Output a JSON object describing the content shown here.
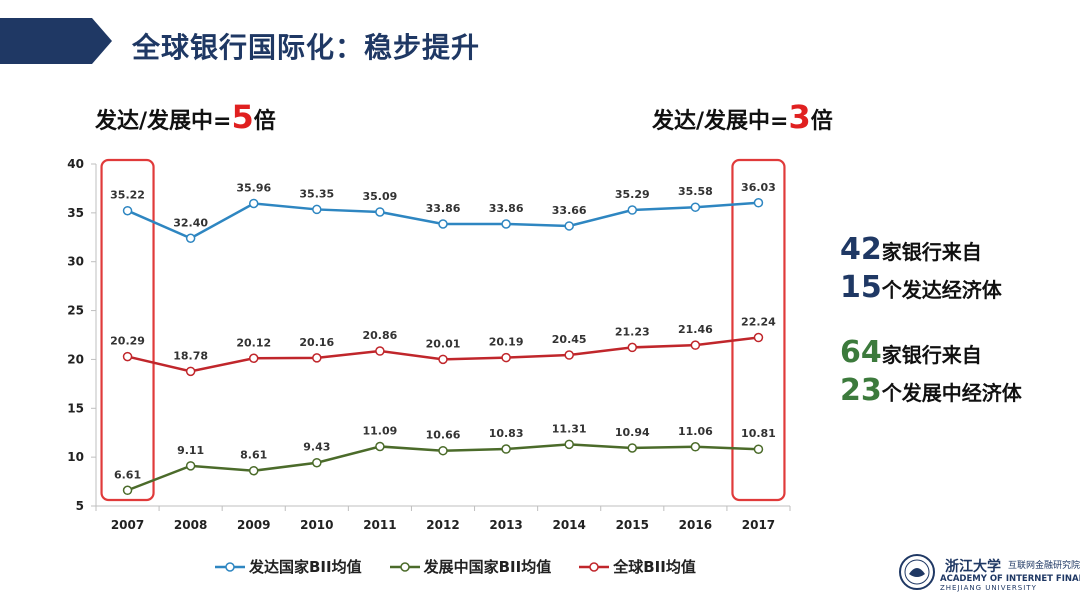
{
  "header": {
    "title": "全球银行国际化：稳步提升"
  },
  "ratios": {
    "left_prefix": "发达/发展中=",
    "left_value": "5",
    "left_suffix": "倍",
    "right_prefix": "发达/发展中=",
    "right_value": "3",
    "right_suffix": "倍"
  },
  "stats": {
    "line1_num": "42",
    "line1_text": "家银行来自",
    "line2_num": "15",
    "line2_text": "个发达经济体",
    "line3_num": "64",
    "line3_text": "家银行来自",
    "line4_num": "23",
    "line4_text": "个发展中经济体"
  },
  "logo": {
    "cn": "浙江大学",
    "sub_cn": "互联网金融研究院",
    "en1": "ACADEMY OF INTERNET FINANCE",
    "en2": "ZHEJIANG UNIVERSITY"
  },
  "colors": {
    "developed": "#2e86c1",
    "developing": "#4b6b2a",
    "global": "#c0262b",
    "highlight_box": "#e03a3a",
    "banner": "#1f3864"
  },
  "chart_data": {
    "type": "line",
    "categories": [
      "2007",
      "2008",
      "2009",
      "2010",
      "2011",
      "2012",
      "2013",
      "2014",
      "2015",
      "2016",
      "2017"
    ],
    "series": [
      {
        "name": "发达国家BII均值",
        "values": [
          35.22,
          32.4,
          35.96,
          35.35,
          35.09,
          33.86,
          33.86,
          33.66,
          35.29,
          35.58,
          36.03
        ]
      },
      {
        "name": "发展中国家BII均值",
        "values": [
          6.61,
          9.11,
          8.61,
          9.43,
          11.09,
          10.66,
          10.83,
          11.31,
          10.94,
          11.06,
          10.81
        ]
      },
      {
        "name": "全球BII均值",
        "values": [
          20.29,
          18.78,
          20.12,
          20.16,
          20.86,
          20.01,
          20.19,
          20.45,
          21.23,
          21.46,
          22.24
        ]
      }
    ],
    "ylim": [
      5,
      40
    ],
    "yticks": [
      "5",
      "10",
      "15",
      "20",
      "25",
      "30",
      "35",
      "40"
    ],
    "legend_position": "bottom",
    "highlighted_categories": [
      "2007",
      "2017"
    ]
  }
}
